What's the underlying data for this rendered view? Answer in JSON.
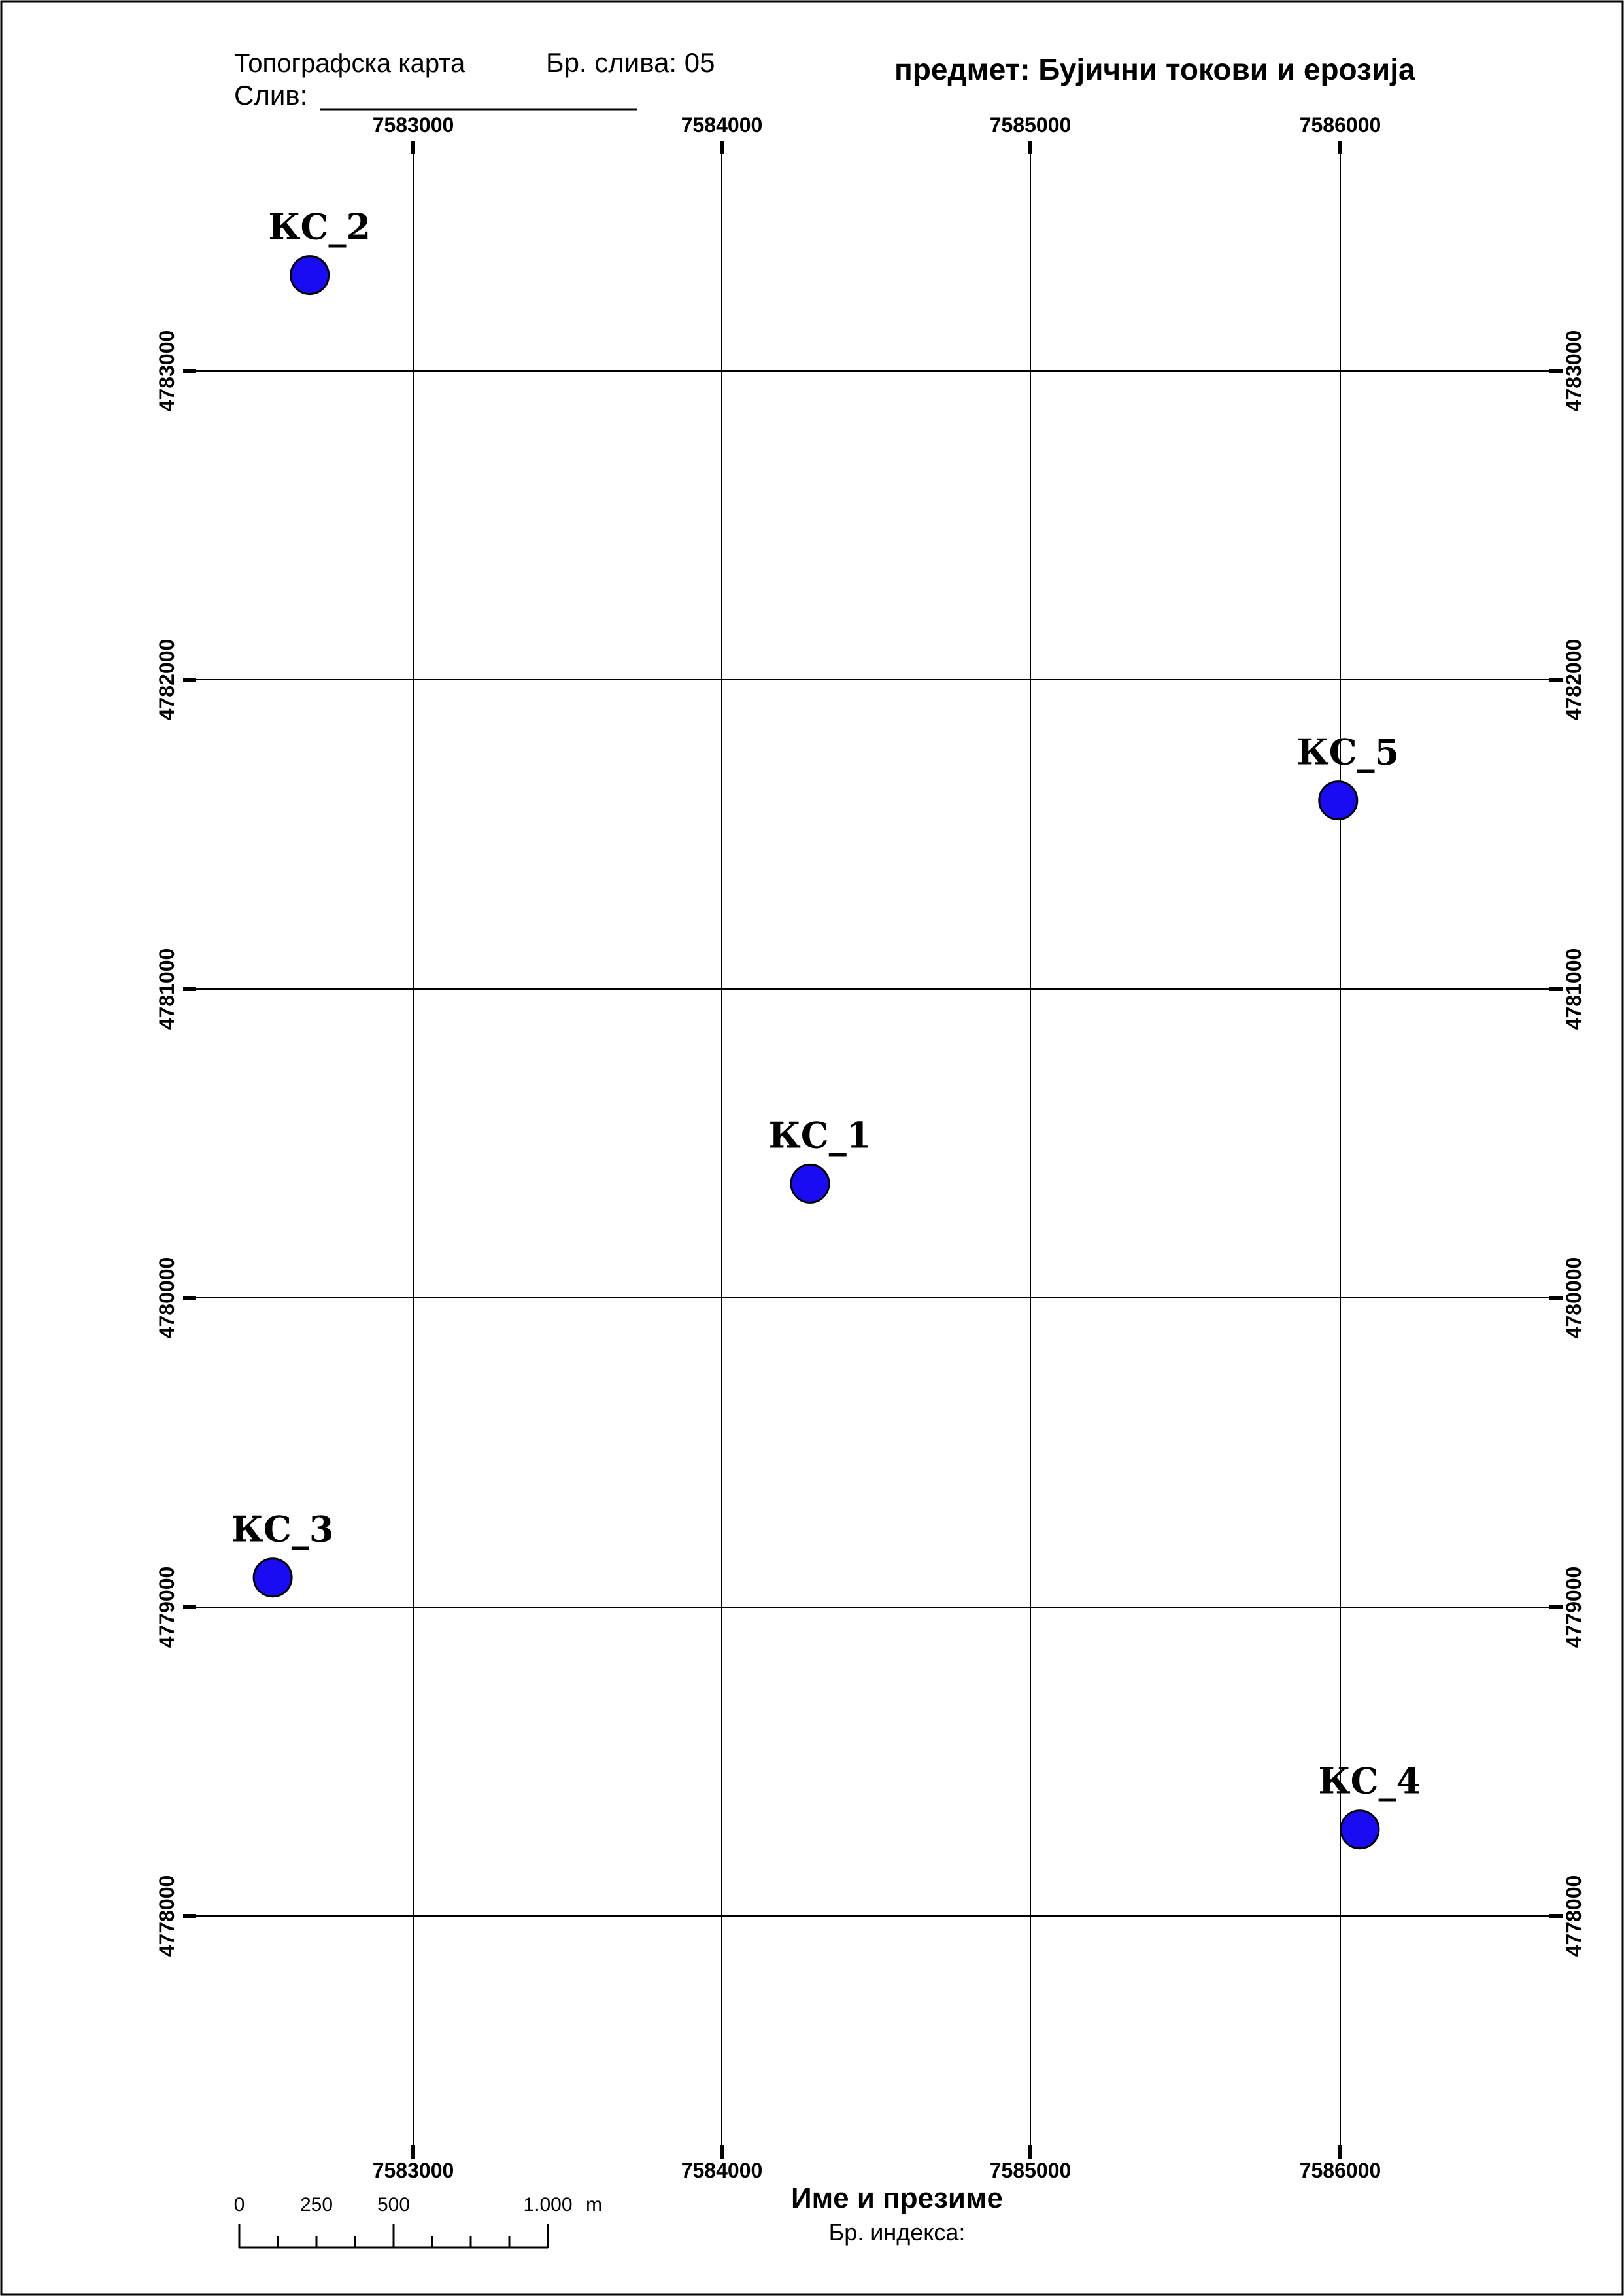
{
  "header": {
    "map_type": "Топографска карта",
    "sheet_number": "Бр. слива: 05",
    "basin_label": "Слив:",
    "subject": "предмет: Бујични токови и ерозија"
  },
  "footer": {
    "name_label": "Име и презиме",
    "index_label": "Бр. индекса:"
  },
  "grid": {
    "eastings": [
      "7583000",
      "7584000",
      "7585000",
      "7586000"
    ],
    "northings": [
      "4783000",
      "4782000",
      "4781000",
      "4780000",
      "4779000",
      "4778000"
    ]
  },
  "scale_bar": {
    "labels": [
      "0",
      "250",
      "500",
      "1.000"
    ],
    "unit": "m"
  },
  "stations": [
    {
      "label": "КС_1",
      "easting": 7584285,
      "northing": 4780370
    },
    {
      "label": "КС_2",
      "easting": 7582665,
      "northing": 4783310
    },
    {
      "label": "КС_3",
      "easting": 7582545,
      "northing": 4779095
    },
    {
      "label": "КС_4",
      "easting": 7586065,
      "northing": 4778280
    },
    {
      "label": "КС_5",
      "easting": 7585995,
      "northing": 4781610
    }
  ],
  "colors": {
    "station_fill": "#1a0cf2",
    "line": "#000000"
  }
}
